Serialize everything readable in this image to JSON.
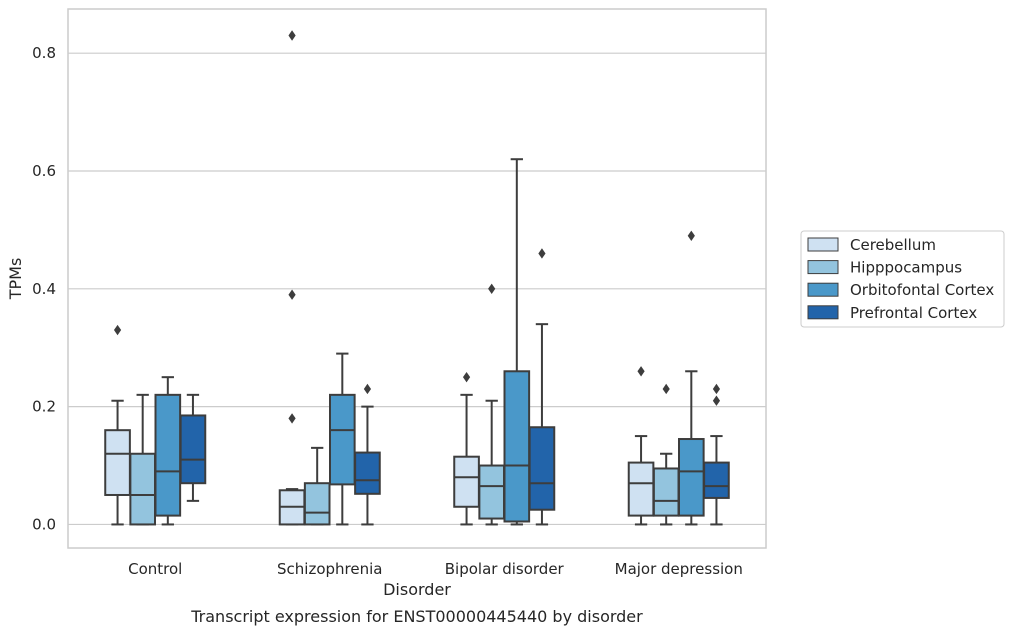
{
  "caption": "Transcript expression for ENST00000445440 by disorder",
  "chart_data": {
    "type": "box",
    "xlabel": "Disorder",
    "ylabel": "TPMs",
    "ylim": [
      -0.04,
      0.875
    ],
    "yticks": [
      0.0,
      0.2,
      0.4,
      0.6,
      0.8
    ],
    "ytick_labels": [
      "0.0",
      "0.2",
      "0.4",
      "0.6",
      "0.8"
    ],
    "grid": "horizontal",
    "legend_position": "right",
    "categories": [
      "Control",
      "Schizophrenia",
      "Bipolar disorder",
      "Major depression"
    ],
    "series": [
      {
        "name": "Cerebellum",
        "color": "#cfe1f2",
        "boxes": [
          {
            "whisker_low": 0.0,
            "q1": 0.05,
            "median": 0.12,
            "q3": 0.16,
            "whisker_high": 0.21,
            "outliers": [
              0.33
            ]
          },
          {
            "whisker_low": 0.0,
            "q1": 0.0,
            "median": 0.03,
            "q3": 0.058,
            "whisker_high": 0.06,
            "outliers": [
              0.83,
              0.39,
              0.18
            ]
          },
          {
            "whisker_low": 0.0,
            "q1": 0.03,
            "median": 0.08,
            "q3": 0.115,
            "whisker_high": 0.22,
            "outliers": [
              0.25
            ]
          },
          {
            "whisker_low": 0.0,
            "q1": 0.015,
            "median": 0.07,
            "q3": 0.105,
            "whisker_high": 0.15,
            "outliers": [
              0.26
            ]
          }
        ]
      },
      {
        "name": "Hipppocampus",
        "color": "#93c4de",
        "boxes": [
          {
            "whisker_low": 0.0,
            "q1": 0.0,
            "median": 0.05,
            "q3": 0.12,
            "whisker_high": 0.22,
            "outliers": []
          },
          {
            "whisker_low": 0.0,
            "q1": 0.0,
            "median": 0.02,
            "q3": 0.07,
            "whisker_high": 0.13,
            "outliers": []
          },
          {
            "whisker_low": 0.0,
            "q1": 0.01,
            "median": 0.065,
            "q3": 0.1,
            "whisker_high": 0.21,
            "outliers": [
              0.4
            ]
          },
          {
            "whisker_low": 0.0,
            "q1": 0.015,
            "median": 0.04,
            "q3": 0.095,
            "whisker_high": 0.12,
            "outliers": [
              0.23
            ]
          }
        ]
      },
      {
        "name": "Orbitofontal Cortex",
        "color": "#4a98c9",
        "boxes": [
          {
            "whisker_low": 0.0,
            "q1": 0.015,
            "median": 0.09,
            "q3": 0.22,
            "whisker_high": 0.25,
            "outliers": []
          },
          {
            "whisker_low": 0.0,
            "q1": 0.068,
            "median": 0.16,
            "q3": 0.22,
            "whisker_high": 0.29,
            "outliers": []
          },
          {
            "whisker_low": 0.0,
            "q1": 0.005,
            "median": 0.1,
            "q3": 0.26,
            "whisker_high": 0.62,
            "outliers": []
          },
          {
            "whisker_low": 0.0,
            "q1": 0.015,
            "median": 0.09,
            "q3": 0.145,
            "whisker_high": 0.26,
            "outliers": [
              0.49
            ]
          }
        ]
      },
      {
        "name": "Prefrontal Cortex",
        "color": "#2264aa",
        "boxes": [
          {
            "whisker_low": 0.04,
            "q1": 0.07,
            "median": 0.11,
            "q3": 0.185,
            "whisker_high": 0.22,
            "outliers": []
          },
          {
            "whisker_low": 0.0,
            "q1": 0.052,
            "median": 0.075,
            "q3": 0.122,
            "whisker_high": 0.2,
            "outliers": [
              0.23
            ]
          },
          {
            "whisker_low": 0.0,
            "q1": 0.025,
            "median": 0.07,
            "q3": 0.165,
            "whisker_high": 0.34,
            "outliers": [
              0.46
            ]
          },
          {
            "whisker_low": 0.0,
            "q1": 0.045,
            "median": 0.065,
            "q3": 0.105,
            "whisker_high": 0.15,
            "outliers": [
              0.23,
              0.21
            ]
          }
        ]
      }
    ]
  }
}
